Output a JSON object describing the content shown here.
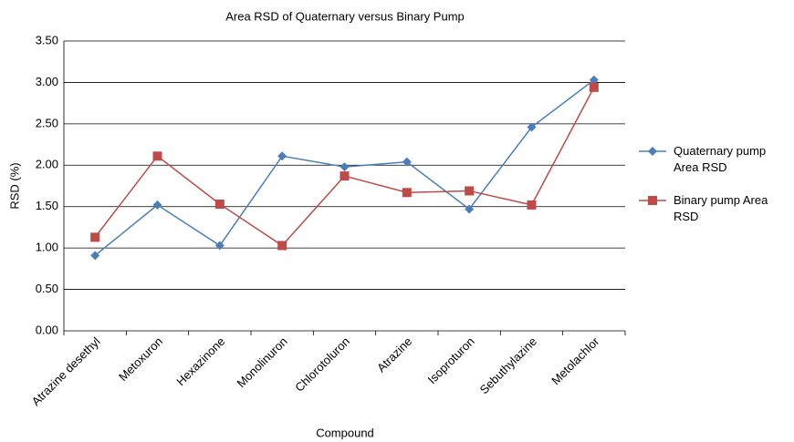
{
  "chart_data": {
    "type": "line",
    "title": "Area RSD of Quaternary versus Binary Pump",
    "x_label": "Compound",
    "y_label": "RSD (%)",
    "categories": [
      "Atrazine desethyl",
      "Metoxuron",
      "Hexazinone",
      "Monolinuron",
      "Chlorotoluron",
      "Atrazine",
      "Isoproturon",
      "Sebuthylazine",
      "Metolachlor"
    ],
    "series": [
      {
        "name": "Quaternary pump Area RSD",
        "color": "#4a7ebb",
        "marker": "diamond",
        "values": [
          0.91,
          1.52,
          1.03,
          2.11,
          1.98,
          2.04,
          1.47,
          2.46,
          3.03
        ]
      },
      {
        "name": "Binary pump Area RSD",
        "color": "#be4b48",
        "marker": "square",
        "values": [
          1.13,
          2.11,
          1.53,
          1.03,
          1.87,
          1.67,
          1.69,
          1.52,
          2.94
        ]
      }
    ],
    "ylim": [
      0,
      3.5
    ],
    "yticks": [
      {
        "value": 0,
        "label": "0.00"
      },
      {
        "value": 0.5,
        "label": "0.50"
      },
      {
        "value": 1,
        "label": "1.00"
      },
      {
        "value": 1.5,
        "label": "1.50"
      },
      {
        "value": 2,
        "label": "2.00"
      },
      {
        "value": 2.5,
        "label": "2.50"
      },
      {
        "value": 3,
        "label": "3.00"
      },
      {
        "value": 3.5,
        "label": "3.50"
      }
    ],
    "grid": true,
    "legend": "right"
  }
}
